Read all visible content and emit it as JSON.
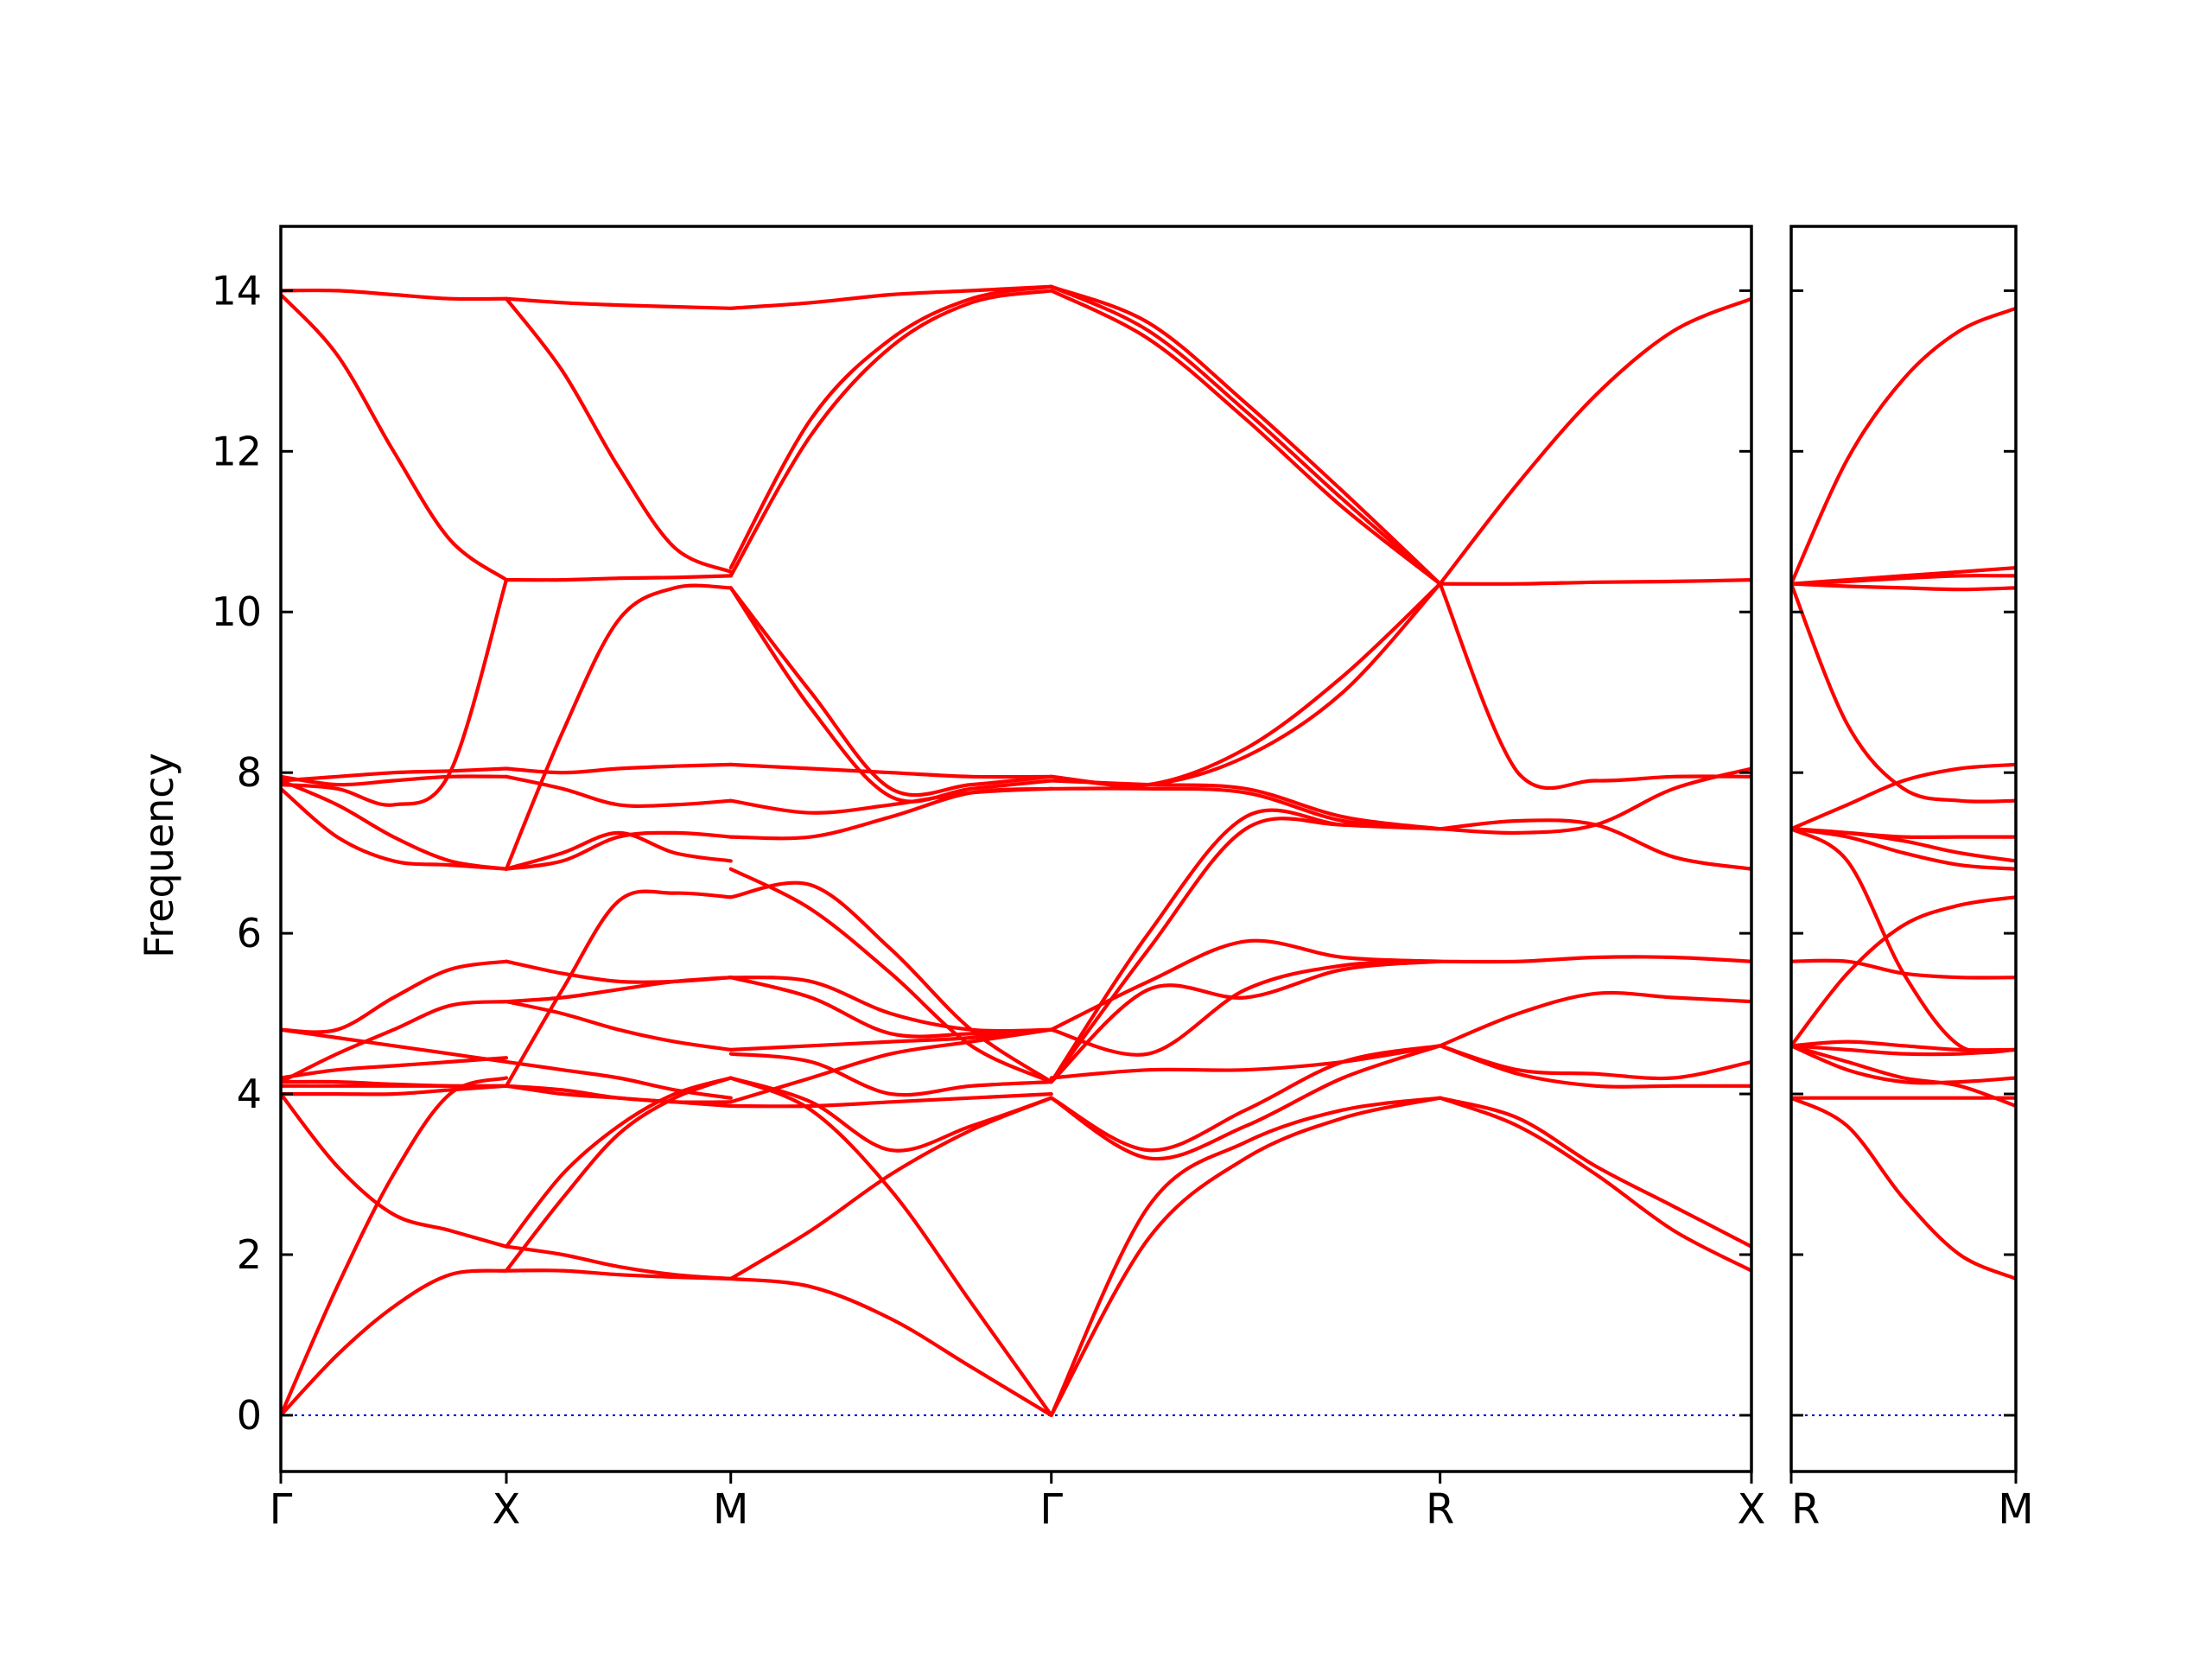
{
  "colors": {
    "band": "#ff0000",
    "zero_line": "#0000cc",
    "axis": "#000000",
    "background": "#ffffff"
  },
  "chart_data": {
    "type": "line",
    "title": "",
    "ylabel": "Frequency",
    "xlabel": "",
    "ylim": [
      -0.7,
      14.8
    ],
    "yticks": [
      0,
      2,
      4,
      6,
      8,
      10,
      12,
      14
    ],
    "grid": false,
    "legend": "none",
    "zero_line": {
      "y": 0,
      "style": "dotted"
    },
    "panels": [
      {
        "name": "main",
        "path": [
          "Γ",
          "X",
          "M",
          "Γ",
          "R",
          "X"
        ],
        "segments": [
          {
            "from": "Γ",
            "to": "X",
            "t": [
              0,
              0.25,
              0.5,
              0.75,
              1
            ],
            "bands": [
              [
                0,
                0.75,
                1.35,
                1.75,
                1.8
              ],
              [
                0,
                1.6,
                3.0,
                4.0,
                4.2
              ],
              [
                4.0,
                3.1,
                2.5,
                2.3,
                2.1
              ],
              [
                4.1,
                4.1,
                4.1,
                4.1,
                4.1
              ],
              [
                4.15,
                4.15,
                4.12,
                4.1,
                4.1
              ],
              [
                4.2,
                4.3,
                4.35,
                4.4,
                4.45
              ],
              [
                4.15,
                4.5,
                4.8,
                5.1,
                5.15
              ],
              [
                4.8,
                4.8,
                5.2,
                5.55,
                5.65
              ],
              [
                4.8,
                4.7,
                4.6,
                4.5,
                4.4
              ],
              [
                4.0,
                4.0,
                4.0,
                4.05,
                4.1
              ],
              [
                7.8,
                7.2,
                6.9,
                6.85,
                6.8
              ],
              [
                7.9,
                7.6,
                7.2,
                6.9,
                6.8
              ],
              [
                7.95,
                7.85,
                7.9,
                7.95,
                7.95
              ],
              [
                7.9,
                7.95,
                8.0,
                8.02,
                8.05
              ],
              [
                7.85,
                7.8,
                7.6,
                8.0,
                10.4
              ],
              [
                14.0,
                14.0,
                13.95,
                13.9,
                13.9
              ],
              [
                13.95,
                13.2,
                12.0,
                10.9,
                10.4
              ]
            ]
          },
          {
            "from": "X",
            "to": "M",
            "t": [
              0,
              0.25,
              0.5,
              0.75,
              1
            ],
            "bands": [
              [
                1.8,
                1.8,
                1.75,
                1.72,
                1.7
              ],
              [
                2.1,
                2.0,
                1.85,
                1.75,
                1.7
              ],
              [
                1.8,
                2.7,
                3.5,
                3.95,
                4.2
              ],
              [
                2.1,
                3.0,
                3.6,
                4.0,
                4.2
              ],
              [
                4.1,
                4.05,
                3.95,
                3.9,
                3.85
              ],
              [
                4.1,
                4.0,
                3.95,
                3.9,
                3.9
              ],
              [
                4.4,
                4.3,
                4.2,
                4.05,
                3.95
              ],
              [
                4.1,
                5.3,
                6.4,
                6.5,
                6.45
              ],
              [
                5.15,
                5.0,
                4.8,
                4.65,
                4.55
              ],
              [
                5.65,
                5.5,
                5.4,
                5.4,
                5.45
              ],
              [
                5.15,
                5.2,
                5.3,
                5.4,
                5.45
              ],
              [
                6.8,
                6.9,
                7.2,
                7.25,
                7.2
              ],
              [
                6.8,
                7.0,
                7.25,
                7.0,
                6.9
              ],
              [
                7.95,
                7.8,
                7.6,
                7.6,
                7.65
              ],
              [
                8.05,
                8.0,
                8.05,
                8.08,
                8.1
              ],
              [
                6.8,
                8.5,
                9.9,
                10.3,
                10.3
              ],
              [
                10.4,
                10.4,
                10.42,
                10.43,
                10.45
              ],
              [
                13.9,
                13.0,
                11.8,
                10.8,
                10.5
              ],
              [
                13.9,
                13.85,
                13.82,
                13.8,
                13.78
              ]
            ]
          },
          {
            "from": "M",
            "to": "Γ",
            "t": [
              0,
              0.25,
              0.5,
              0.75,
              1
            ],
            "bands": [
              [
                1.7,
                1.6,
                1.2,
                0.6,
                0
              ],
              [
                1.7,
                2.3,
                3.0,
                3.55,
                3.95
              ],
              [
                4.2,
                3.8,
                2.8,
                1.4,
                0
              ],
              [
                4.2,
                3.9,
                3.3,
                3.6,
                3.95
              ],
              [
                3.85,
                3.85,
                3.9,
                3.95,
                4.0
              ],
              [
                4.5,
                4.4,
                4.0,
                4.1,
                4.15
              ],
              [
                3.9,
                4.2,
                4.5,
                4.65,
                4.8
              ],
              [
                4.55,
                4.6,
                4.65,
                4.7,
                4.8
              ],
              [
                5.45,
                5.4,
                5.0,
                4.8,
                4.8
              ],
              [
                5.45,
                5.2,
                4.75,
                4.75,
                4.8
              ],
              [
                6.45,
                6.6,
                5.8,
                4.8,
                4.15
              ],
              [
                6.8,
                6.3,
                5.5,
                4.6,
                4.15
              ],
              [
                7.2,
                7.2,
                7.45,
                7.75,
                7.8
              ],
              [
                7.65,
                7.5,
                7.6,
                7.75,
                7.8
              ],
              [
                8.1,
                8.05,
                8.0,
                7.95,
                7.95
              ],
              [
                10.3,
                8.8,
                7.7,
                7.8,
                7.9
              ],
              [
                10.3,
                9.0,
                7.8,
                7.85,
                7.95
              ],
              [
                10.45,
                12.2,
                13.3,
                13.85,
                14.0
              ],
              [
                10.55,
                12.4,
                13.4,
                13.9,
                14.05
              ],
              [
                13.78,
                13.85,
                13.95,
                14.0,
                14.05
              ]
            ]
          },
          {
            "from": "Γ",
            "to": "R",
            "t": [
              0,
              0.25,
              0.5,
              0.75,
              1
            ],
            "bands": [
              [
                0,
                2.2,
                3.2,
                3.7,
                3.95
              ],
              [
                0,
                2.6,
                3.4,
                3.8,
                3.95
              ],
              [
                3.95,
                3.2,
                3.6,
                4.2,
                4.6
              ],
              [
                3.95,
                3.3,
                3.8,
                4.4,
                4.6
              ],
              [
                4.2,
                4.3,
                4.3,
                4.4,
                4.6
              ],
              [
                4.15,
                5.3,
                5.2,
                5.55,
                5.65
              ],
              [
                4.8,
                4.5,
                5.3,
                5.6,
                5.65
              ],
              [
                4.8,
                5.4,
                5.9,
                5.7,
                5.65
              ],
              [
                4.15,
                5.8,
                7.3,
                7.35,
                7.3
              ],
              [
                4.15,
                6.0,
                7.45,
                7.35,
                7.3
              ],
              [
                7.8,
                7.8,
                7.75,
                7.4,
                7.3
              ],
              [
                7.9,
                7.85,
                7.8,
                7.45,
                7.3
              ],
              [
                7.95,
                7.85,
                8.2,
                9.0,
                10.35
              ],
              [
                7.95,
                7.85,
                8.3,
                9.2,
                10.35
              ],
              [
                14.0,
                13.4,
                12.4,
                11.3,
                10.35
              ],
              [
                14.05,
                13.5,
                12.5,
                11.4,
                10.35
              ],
              [
                14.05,
                13.6,
                12.6,
                11.5,
                10.35
              ]
            ]
          },
          {
            "from": "R",
            "to": "X",
            "t": [
              0,
              0.25,
              0.5,
              0.75,
              1
            ],
            "bands": [
              [
                3.95,
                3.6,
                3.0,
                2.3,
                1.8
              ],
              [
                3.95,
                3.7,
                3.1,
                2.6,
                2.1
              ],
              [
                4.6,
                4.25,
                4.1,
                4.1,
                4.1
              ],
              [
                4.6,
                4.3,
                4.25,
                4.2,
                4.4
              ],
              [
                4.6,
                5.0,
                5.25,
                5.2,
                5.15
              ],
              [
                5.65,
                5.65,
                5.7,
                5.7,
                5.65
              ],
              [
                7.3,
                7.4,
                7.35,
                6.95,
                6.8
              ],
              [
                7.3,
                7.25,
                7.35,
                7.8,
                8.05
              ],
              [
                10.35,
                8.0,
                7.9,
                7.95,
                7.95
              ],
              [
                10.35,
                10.35,
                10.37,
                10.38,
                10.4
              ],
              [
                10.35,
                11.6,
                12.7,
                13.5,
                13.9
              ]
            ]
          }
        ]
      },
      {
        "name": "side",
        "path": [
          "R",
          "M"
        ],
        "segments": [
          {
            "from": "R",
            "to": "M",
            "t": [
              0,
              0.25,
              0.5,
              0.75,
              1
            ],
            "bands": [
              [
                3.95,
                3.6,
                2.7,
                2.0,
                1.7
              ],
              [
                3.95,
                3.95,
                3.95,
                3.95,
                3.95
              ],
              [
                4.6,
                4.4,
                4.2,
                4.1,
                3.85
              ],
              [
                4.6,
                4.3,
                4.15,
                4.15,
                4.2
              ],
              [
                4.6,
                4.55,
                4.5,
                4.5,
                4.55
              ],
              [
                4.6,
                4.65,
                4.6,
                4.55,
                4.55
              ],
              [
                4.6,
                5.5,
                6.1,
                6.35,
                6.45
              ],
              [
                5.65,
                5.65,
                5.5,
                5.45,
                5.45
              ],
              [
                7.3,
                6.9,
                5.5,
                4.6,
                4.55
              ],
              [
                7.3,
                7.2,
                7.0,
                6.85,
                6.8
              ],
              [
                7.3,
                7.25,
                7.15,
                7.0,
                6.9
              ],
              [
                7.3,
                7.25,
                7.2,
                7.2,
                7.2
              ],
              [
                7.3,
                7.6,
                7.9,
                8.05,
                8.1
              ],
              [
                10.35,
                8.6,
                7.8,
                7.65,
                7.65
              ],
              [
                10.35,
                10.32,
                10.3,
                10.28,
                10.3
              ],
              [
                10.35,
                10.38,
                10.42,
                10.45,
                10.45
              ],
              [
                10.35,
                10.4,
                10.45,
                10.5,
                10.55
              ],
              [
                10.35,
                11.9,
                12.9,
                13.5,
                13.78
              ]
            ]
          }
        ]
      }
    ]
  }
}
